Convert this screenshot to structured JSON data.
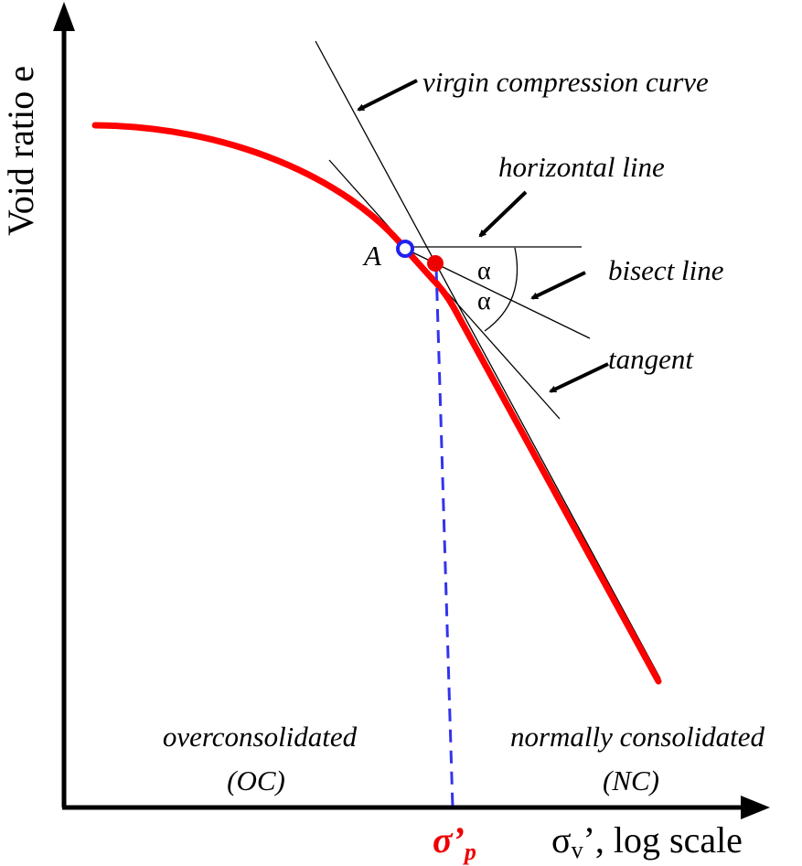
{
  "axes": {
    "y_label": "Void ratio e",
    "x_label_symbol": "σ",
    "x_label_subscript": "v",
    "x_label_rest": "’, log scale",
    "x_scale": "log"
  },
  "annotations": {
    "virgin_compression": "virgin compression curve",
    "horizontal": "horizontal line",
    "bisect": "bisect line",
    "tangent": "tangent",
    "point_a": "A",
    "alpha_upper": "α",
    "alpha_lower": "α",
    "preconsolidation_symbol": "σ’",
    "preconsolidation_subscript": "p"
  },
  "regions": {
    "oc_label": "overconsolidated",
    "oc_abbr": "(OC)",
    "nc_label": "normally consolidated",
    "nc_abbr": "(NC)"
  },
  "colors": {
    "curve": "#ff0000",
    "point_a": "#2222ee",
    "preconsolidation_point": "#ee0000",
    "dashed_line": "#3333ee",
    "lines": "#000000"
  }
}
